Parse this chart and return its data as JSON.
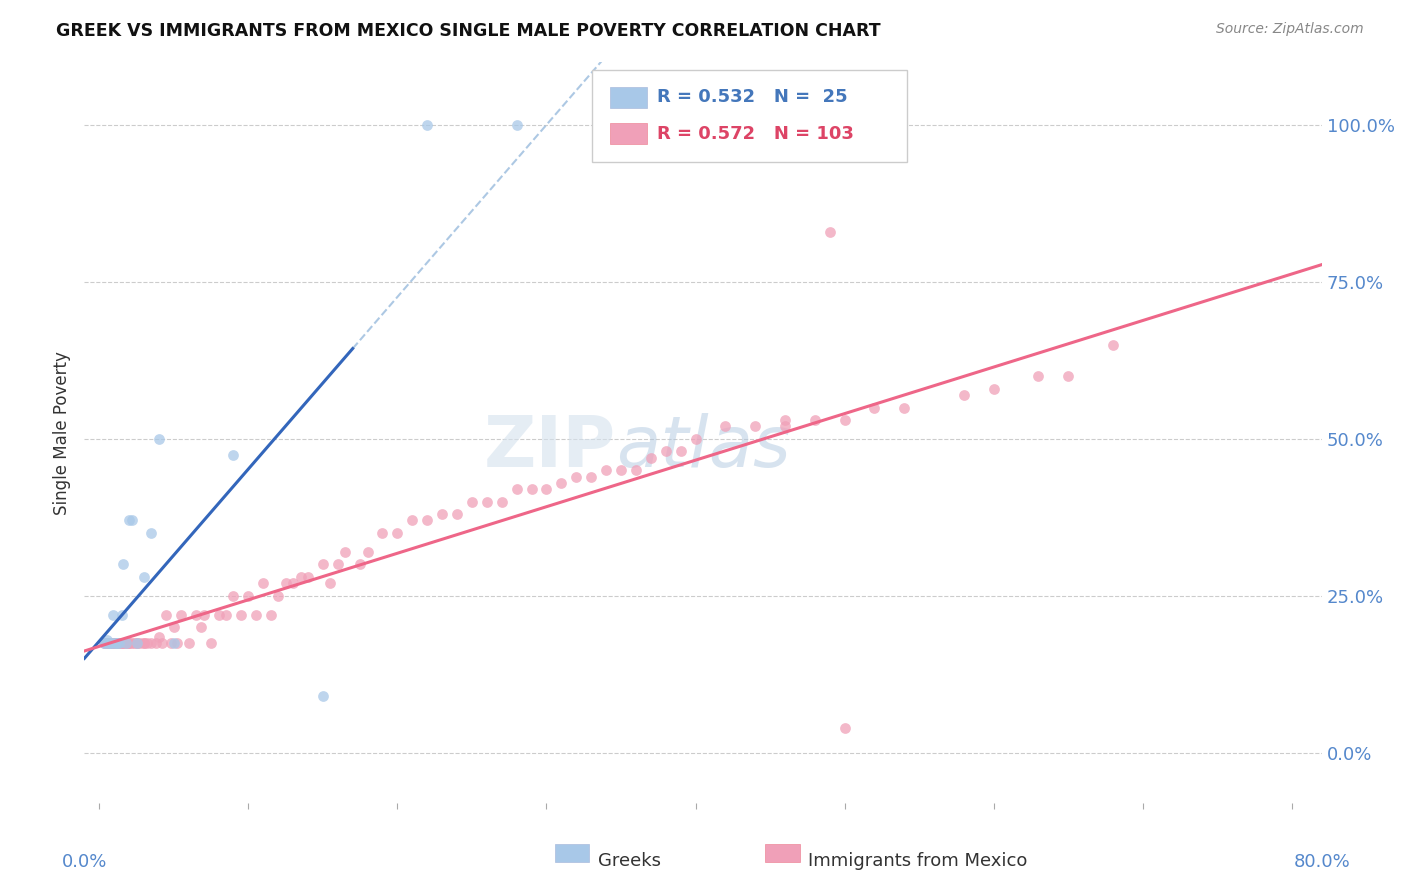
{
  "title": "GREEK VS IMMIGRANTS FROM MEXICO SINGLE MALE POVERTY CORRELATION CHART",
  "source": "Source: ZipAtlas.com",
  "ylabel": "Single Male Poverty",
  "yticks": [
    "0.0%",
    "25.0%",
    "50.0%",
    "75.0%",
    "100.0%"
  ],
  "ytick_vals": [
    0.0,
    0.25,
    0.5,
    0.75,
    1.0
  ],
  "greeks_R": "0.532",
  "greeks_N": "25",
  "mexico_R": "0.572",
  "mexico_N": "103",
  "greeks_color": "#a8c8e8",
  "mexico_color": "#f0a0b8",
  "greeks_line_color": "#3366bb",
  "mexico_line_color": "#ee6688",
  "watermark_color": "#c8d8e8",
  "greeks_x": [
    0.003,
    0.004,
    0.005,
    0.006,
    0.007,
    0.008,
    0.009,
    0.01,
    0.011,
    0.012,
    0.013,
    0.015,
    0.016,
    0.018,
    0.02,
    0.022,
    0.025,
    0.03,
    0.035,
    0.04,
    0.05,
    0.09,
    0.15,
    0.22,
    0.28
  ],
  "greeks_y": [
    0.175,
    0.175,
    0.18,
    0.175,
    0.175,
    0.175,
    0.22,
    0.175,
    0.175,
    0.175,
    0.175,
    0.22,
    0.3,
    0.175,
    0.37,
    0.37,
    0.175,
    0.28,
    0.35,
    0.5,
    0.175,
    0.475,
    0.09,
    1.0,
    1.0
  ],
  "mexico_x": [
    0.003,
    0.004,
    0.005,
    0.005,
    0.006,
    0.006,
    0.007,
    0.007,
    0.008,
    0.008,
    0.009,
    0.01,
    0.01,
    0.011,
    0.012,
    0.013,
    0.014,
    0.015,
    0.015,
    0.016,
    0.017,
    0.018,
    0.019,
    0.02,
    0.02,
    0.022,
    0.023,
    0.025,
    0.025,
    0.027,
    0.03,
    0.03,
    0.032,
    0.035,
    0.038,
    0.04,
    0.042,
    0.045,
    0.048,
    0.05,
    0.052,
    0.055,
    0.06,
    0.065,
    0.068,
    0.07,
    0.075,
    0.08,
    0.085,
    0.09,
    0.095,
    0.1,
    0.105,
    0.11,
    0.115,
    0.12,
    0.125,
    0.13,
    0.135,
    0.14,
    0.15,
    0.155,
    0.16,
    0.165,
    0.175,
    0.18,
    0.19,
    0.2,
    0.21,
    0.22,
    0.23,
    0.24,
    0.25,
    0.26,
    0.27,
    0.28,
    0.29,
    0.3,
    0.31,
    0.32,
    0.33,
    0.34,
    0.35,
    0.36,
    0.37,
    0.38,
    0.39,
    0.4,
    0.42,
    0.44,
    0.46,
    0.48,
    0.5,
    0.52,
    0.54,
    0.58,
    0.6,
    0.63,
    0.65,
    0.68,
    0.49,
    0.46,
    0.5
  ],
  "mexico_y": [
    0.175,
    0.175,
    0.175,
    0.175,
    0.175,
    0.175,
    0.175,
    0.175,
    0.175,
    0.175,
    0.175,
    0.175,
    0.175,
    0.175,
    0.175,
    0.175,
    0.175,
    0.175,
    0.175,
    0.175,
    0.175,
    0.175,
    0.175,
    0.175,
    0.175,
    0.175,
    0.175,
    0.175,
    0.175,
    0.175,
    0.175,
    0.175,
    0.175,
    0.175,
    0.175,
    0.185,
    0.175,
    0.22,
    0.175,
    0.2,
    0.175,
    0.22,
    0.175,
    0.22,
    0.2,
    0.22,
    0.175,
    0.22,
    0.22,
    0.25,
    0.22,
    0.25,
    0.22,
    0.27,
    0.22,
    0.25,
    0.27,
    0.27,
    0.28,
    0.28,
    0.3,
    0.27,
    0.3,
    0.32,
    0.3,
    0.32,
    0.35,
    0.35,
    0.37,
    0.37,
    0.38,
    0.38,
    0.4,
    0.4,
    0.4,
    0.42,
    0.42,
    0.42,
    0.43,
    0.44,
    0.44,
    0.45,
    0.45,
    0.45,
    0.47,
    0.48,
    0.48,
    0.5,
    0.52,
    0.52,
    0.52,
    0.53,
    0.53,
    0.55,
    0.55,
    0.57,
    0.58,
    0.6,
    0.6,
    0.65,
    0.83,
    0.53,
    0.04
  ]
}
